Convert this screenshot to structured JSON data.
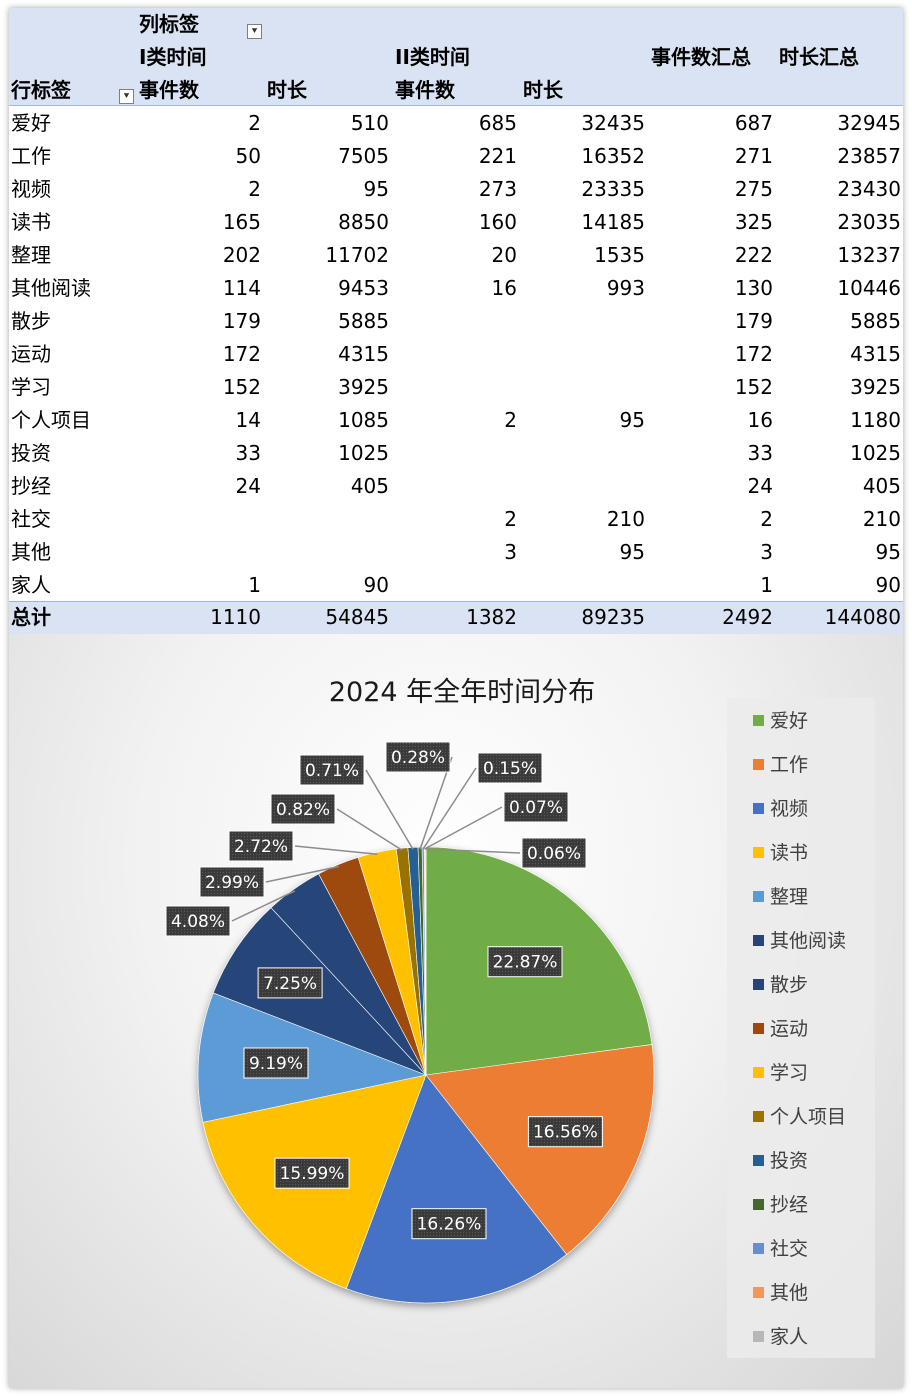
{
  "pivot": {
    "col_label": "列标签",
    "row_label": "行标签",
    "group1": "I类时间",
    "group2": "II类时间",
    "count_header": "事件数",
    "dur_header": "时长",
    "count_total_header": "事件数汇总",
    "dur_total_header": "时长汇总",
    "rows": [
      {
        "label": "爱好",
        "c1": "2",
        "d1": "510",
        "c2": "685",
        "d2": "32435",
        "ct": "687",
        "dt": "32945"
      },
      {
        "label": "工作",
        "c1": "50",
        "d1": "7505",
        "c2": "221",
        "d2": "16352",
        "ct": "271",
        "dt": "23857"
      },
      {
        "label": "视频",
        "c1": "2",
        "d1": "95",
        "c2": "273",
        "d2": "23335",
        "ct": "275",
        "dt": "23430"
      },
      {
        "label": "读书",
        "c1": "165",
        "d1": "8850",
        "c2": "160",
        "d2": "14185",
        "ct": "325",
        "dt": "23035"
      },
      {
        "label": "整理",
        "c1": "202",
        "d1": "11702",
        "c2": "20",
        "d2": "1535",
        "ct": "222",
        "dt": "13237"
      },
      {
        "label": "其他阅读",
        "c1": "114",
        "d1": "9453",
        "c2": "16",
        "d2": "993",
        "ct": "130",
        "dt": "10446"
      },
      {
        "label": "散步",
        "c1": "179",
        "d1": "5885",
        "c2": "",
        "d2": "",
        "ct": "179",
        "dt": "5885"
      },
      {
        "label": "运动",
        "c1": "172",
        "d1": "4315",
        "c2": "",
        "d2": "",
        "ct": "172",
        "dt": "4315"
      },
      {
        "label": "学习",
        "c1": "152",
        "d1": "3925",
        "c2": "",
        "d2": "",
        "ct": "152",
        "dt": "3925"
      },
      {
        "label": "个人项目",
        "c1": "14",
        "d1": "1085",
        "c2": "2",
        "d2": "95",
        "ct": "16",
        "dt": "1180"
      },
      {
        "label": "投资",
        "c1": "33",
        "d1": "1025",
        "c2": "",
        "d2": "",
        "ct": "33",
        "dt": "1025"
      },
      {
        "label": "抄经",
        "c1": "24",
        "d1": "405",
        "c2": "",
        "d2": "",
        "ct": "24",
        "dt": "405"
      },
      {
        "label": "社交",
        "c1": "",
        "d1": "",
        "c2": "2",
        "d2": "210",
        "ct": "2",
        "dt": "210"
      },
      {
        "label": "其他",
        "c1": "",
        "d1": "",
        "c2": "3",
        "d2": "95",
        "ct": "3",
        "dt": "95"
      },
      {
        "label": "家人",
        "c1": "1",
        "d1": "90",
        "c2": "",
        "d2": "",
        "ct": "1",
        "dt": "90"
      }
    ],
    "total": {
      "label": "总计",
      "c1": "1110",
      "d1": "54845",
      "c2": "1382",
      "d2": "89235",
      "ct": "2492",
      "dt": "144080"
    }
  },
  "chart_data": {
    "type": "pie",
    "title": "2024 年全年时间分布",
    "legend_position": "right",
    "categories": [
      "爱好",
      "工作",
      "视频",
      "读书",
      "整理",
      "其他阅读",
      "散步",
      "运动",
      "学习",
      "个人项目",
      "投资",
      "抄经",
      "社交",
      "其他",
      "家人"
    ],
    "values": [
      32945,
      23857,
      23430,
      23035,
      13237,
      10446,
      5885,
      4315,
      3925,
      1180,
      1025,
      405,
      210,
      95,
      90
    ],
    "data_labels": [
      "22.87%",
      "16.56%",
      "16.26%",
      "15.99%",
      "9.19%",
      "7.25%",
      "4.08%",
      "2.99%",
      "2.72%",
      "0.82%",
      "0.71%",
      "0.28%",
      "0.15%",
      "0.07%",
      "0.06%"
    ],
    "colors": [
      "#70ad47",
      "#ed7d31",
      "#4472c4",
      "#ffc000",
      "#5b9bd5",
      "#264478",
      "#264478",
      "#9e480e",
      "#ffc000",
      "#997300",
      "#255e91",
      "#43682b",
      "#698ed0",
      "#f1975a",
      "#b7b7b7"
    ]
  }
}
